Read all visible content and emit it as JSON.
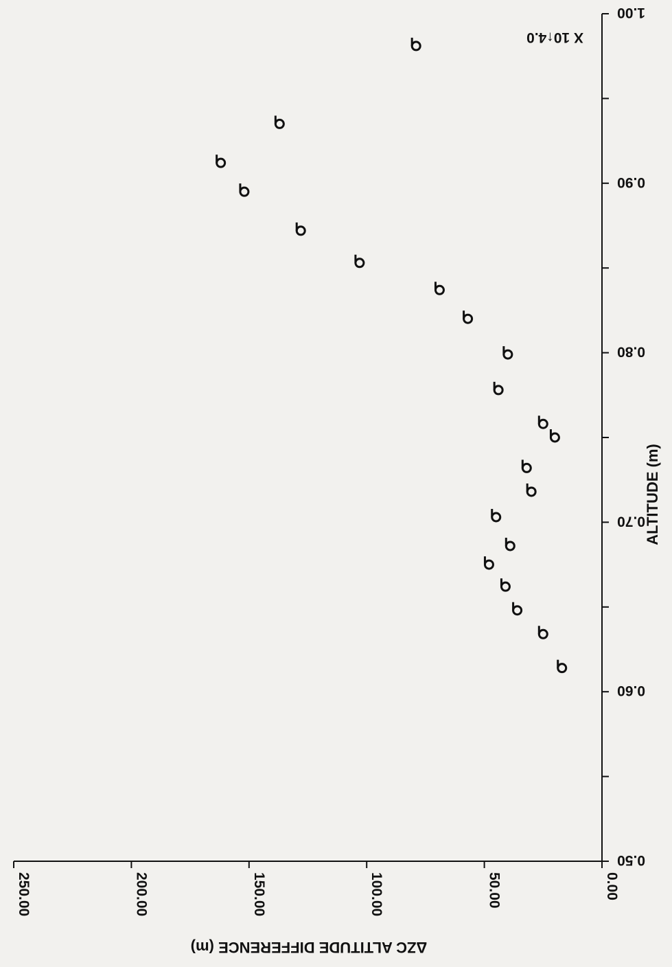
{
  "chart_data": {
    "type": "scatter",
    "title": "",
    "xlabel": "ALTITUDE (m)",
    "ylabel": "ΔZC ALTITUDE DIFFERENCE (m)",
    "x_scale_note": "X 10↑4.0",
    "xlim": [
      0.5,
      1.0
    ],
    "ylim": [
      0,
      250
    ],
    "x_tick_labels": [
      "0.50",
      "0.60",
      "0.70",
      "0.80",
      "0.90",
      "1.00"
    ],
    "y_tick_labels": [
      "0.00",
      "50.00",
      "100.00",
      "150.00",
      "200.00",
      "250.00"
    ],
    "grid": false,
    "legend": "none",
    "orientation": "rotated 180°",
    "marker": "lowercase-b open circle",
    "series": [
      {
        "x": [
          0.614,
          0.634,
          0.648,
          0.662,
          0.675,
          0.686,
          0.703,
          0.718,
          0.732,
          0.75,
          0.758,
          0.778,
          0.799,
          0.82,
          0.837,
          0.853,
          0.872,
          0.895,
          0.912,
          0.935,
          0.981
        ],
        "y": [
          17,
          25,
          36,
          41,
          48,
          39,
          45,
          30,
          32,
          20,
          25,
          44,
          40,
          57,
          69,
          103,
          128,
          152,
          162,
          137,
          79
        ]
      }
    ]
  }
}
